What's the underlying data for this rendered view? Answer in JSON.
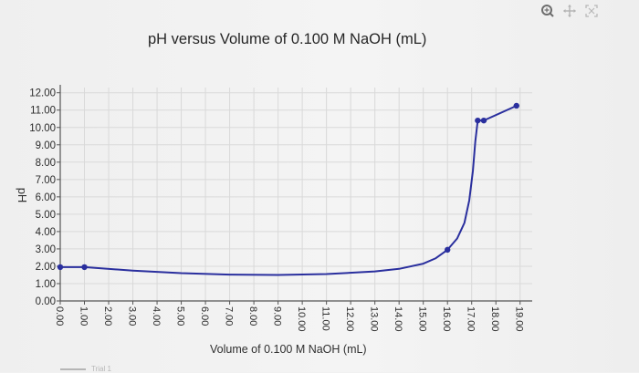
{
  "toolbar": {
    "icons": [
      "zoom-icon",
      "pan-icon",
      "reset-axes-icon"
    ]
  },
  "colors": {
    "background": "#f2f2f2",
    "grid": "#d9d9d9",
    "axis": "#555555",
    "series": "#2a2f9e",
    "text": "#2b2b2b"
  },
  "chart_data": {
    "type": "line",
    "title": "pH versus Volume of 0.100 M NaOH (mL)",
    "xlabel": "Volume of 0.100 M NaOH (mL)",
    "ylabel": "pH",
    "xlim": [
      0,
      19.5
    ],
    "ylim": [
      0,
      12.3
    ],
    "grid": true,
    "x_ticks": [
      "0.00",
      "1.00",
      "2.00",
      "3.00",
      "4.00",
      "5.00",
      "6.00",
      "7.00",
      "8.00",
      "9.00",
      "10.00",
      "11.00",
      "12.00",
      "13.00",
      "14.00",
      "15.00",
      "16.00",
      "17.00",
      "18.00",
      "19.00"
    ],
    "y_ticks": [
      "0.00",
      "1.00",
      "2.00",
      "3.00",
      "4.00",
      "5.00",
      "6.00",
      "7.00",
      "8.00",
      "9.00",
      "10.00",
      "11.00",
      "12.00"
    ],
    "legend": {
      "placement": "bottom-left",
      "entries": [
        "Trial 1"
      ]
    },
    "series": [
      {
        "name": "Trial 1",
        "markers": [
          [
            0.0,
            1.95
          ],
          [
            1.0,
            1.95
          ],
          [
            16.0,
            2.95
          ],
          [
            17.25,
            10.4
          ],
          [
            17.5,
            10.4
          ],
          [
            18.85,
            11.25
          ]
        ],
        "curve": [
          [
            0.0,
            1.95
          ],
          [
            1.0,
            1.95
          ],
          [
            3.0,
            1.75
          ],
          [
            5.0,
            1.6
          ],
          [
            7.0,
            1.52
          ],
          [
            9.0,
            1.5
          ],
          [
            11.0,
            1.55
          ],
          [
            13.0,
            1.7
          ],
          [
            14.0,
            1.85
          ],
          [
            15.0,
            2.15
          ],
          [
            15.5,
            2.45
          ],
          [
            16.0,
            2.95
          ],
          [
            16.4,
            3.6
          ],
          [
            16.7,
            4.5
          ],
          [
            16.9,
            5.8
          ],
          [
            17.05,
            7.5
          ],
          [
            17.15,
            9.2
          ],
          [
            17.25,
            10.4
          ],
          [
            17.5,
            10.4
          ],
          [
            18.85,
            11.25
          ]
        ]
      }
    ]
  }
}
